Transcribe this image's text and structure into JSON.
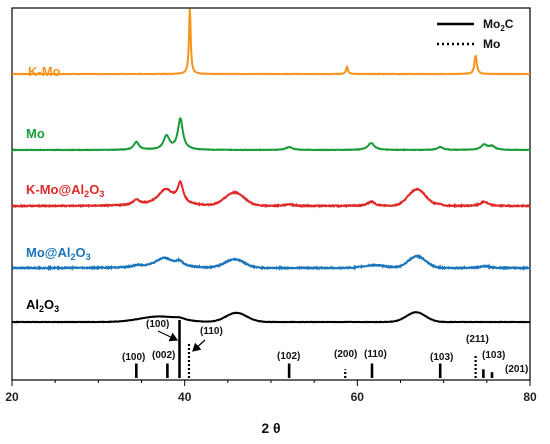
{
  "chart_data": {
    "type": "line",
    "xlabel": "2 θ",
    "ylabel": "",
    "xlim": [
      20,
      80
    ],
    "x_ticks": [
      "20",
      "40",
      "60",
      "80"
    ],
    "grid": false,
    "legend": {
      "placement": "top-right",
      "entries": [
        {
          "name": "Mo",
          "sub": "2",
          "name_tail": "C",
          "style": "solid"
        },
        {
          "name": "Mo",
          "sub": "",
          "name_tail": "",
          "style": "dotted"
        }
      ]
    },
    "series": [
      {
        "name": "K-Mo",
        "label_parts": [
          "K-Mo"
        ],
        "color": "#F7941D",
        "baseline": 5,
        "noise": 0.06,
        "broad": [],
        "peaks": [
          [
            40.6,
            0.12,
            23
          ],
          [
            58.8,
            0.13,
            2.5
          ],
          [
            73.7,
            0.16,
            6.5
          ]
        ]
      },
      {
        "name": "Mo",
        "label_parts": [
          "Mo"
        ],
        "color": "#1A9B3A",
        "baseline": 4,
        "noise": 0.08,
        "broad": [],
        "peaks": [
          [
            34.4,
            0.35,
            2.8
          ],
          [
            37.9,
            0.4,
            4.8
          ],
          [
            39.5,
            0.35,
            10.8
          ],
          [
            52.1,
            0.45,
            1.0
          ],
          [
            61.6,
            0.45,
            2.4
          ],
          [
            69.6,
            0.4,
            1.0
          ],
          [
            74.7,
            0.45,
            1.8
          ],
          [
            75.6,
            0.4,
            1.2
          ]
        ]
      },
      {
        "name": "K-Mo@Al2O3",
        "label_parts": [
          "K-Mo@Al",
          "2",
          "O",
          "3"
        ],
        "color": "#E02828",
        "baseline": 3,
        "noise": 0.18,
        "broad": [
          [
            45.8,
            1.1,
            4.6
          ],
          [
            66.9,
            1.0,
            5.8
          ]
        ],
        "peaks": [
          [
            34.4,
            0.45,
            1.8
          ],
          [
            37.8,
            1.1,
            5.6
          ],
          [
            39.5,
            0.4,
            6.8
          ],
          [
            52.1,
            0.5,
            0.6
          ],
          [
            61.6,
            0.5,
            1.5
          ],
          [
            69.5,
            0.5,
            0.5
          ],
          [
            74.7,
            0.5,
            1.5
          ]
        ]
      },
      {
        "name": "Mo@Al2O3",
        "label_parts": [
          "Mo@Al",
          "2",
          "O",
          "3"
        ],
        "color": "#1B75BB",
        "baseline": 2,
        "noise": 0.2,
        "broad": [
          [
            45.8,
            1.1,
            3.0
          ],
          [
            66.9,
            1.0,
            4.1
          ],
          [
            62.0,
            1.2,
            1.0
          ]
        ],
        "peaks": [
          [
            37.6,
            1.3,
            3.4
          ],
          [
            39.4,
            0.5,
            1.6
          ],
          [
            34.5,
            0.6,
            0.6
          ],
          [
            74.8,
            0.7,
            0.6
          ]
        ]
      },
      {
        "name": "Al2O3",
        "label_parts": [
          "Al",
          "2",
          "O",
          "3"
        ],
        "color": "#000000",
        "baseline": 1,
        "noise": 0.06,
        "broad": [
          [
            37.0,
            2.2,
            1.9
          ],
          [
            46.0,
            1.2,
            3.2
          ],
          [
            66.8,
            1.1,
            3.4
          ]
        ],
        "peaks": [
          [
            39.4,
            0.7,
            0.6
          ]
        ]
      }
    ],
    "reference_lines": {
      "Mo2C": [
        {
          "x": 34.4,
          "h": 0.25,
          "label": "(100)"
        },
        {
          "x": 38.0,
          "h": 0.25,
          "label": "(002)"
        },
        {
          "x": 39.4,
          "h": 1.0,
          "label": "(100)"
        },
        {
          "x": 52.1,
          "h": 0.25,
          "label": "(102)"
        },
        {
          "x": 61.7,
          "h": 0.25,
          "label": "(110)"
        },
        {
          "x": 69.6,
          "h": 0.25,
          "label": "(103)"
        },
        {
          "x": 74.6,
          "h": 0.15,
          "label": "(103)"
        },
        {
          "x": 75.6,
          "h": 0.1,
          "label": "(201)"
        }
      ],
      "Mo": [
        {
          "x": 40.5,
          "h": 0.6,
          "label": "(110)"
        },
        {
          "x": 58.6,
          "h": 0.15,
          "label": "(200)"
        },
        {
          "x": 73.7,
          "h": 0.4,
          "label": "(211)"
        }
      ]
    }
  }
}
